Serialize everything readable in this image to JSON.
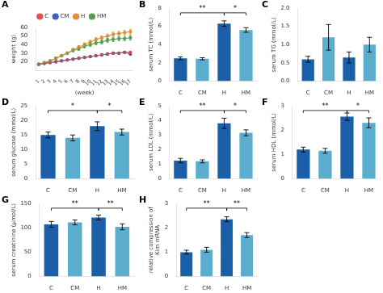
{
  "chart_data": [
    {
      "type": "line",
      "title": "A",
      "x": [
        1,
        2,
        3,
        4,
        5,
        6,
        7,
        8,
        9,
        10,
        11,
        12,
        13,
        14,
        15,
        16,
        17
      ],
      "series": [
        {
          "name": "C",
          "color": "#e05050",
          "values": [
            17,
            18,
            19,
            20,
            21,
            22,
            23,
            24,
            25,
            26,
            27,
            28,
            29,
            30,
            30,
            31,
            31
          ],
          "errors": [
            0.5,
            0.5,
            0.6,
            0.6,
            0.7,
            0.7,
            0.8,
            0.8,
            0.9,
            0.9,
            1.0,
            1.0,
            1.1,
            1.1,
            1.2,
            1.2,
            1.3
          ]
        },
        {
          "name": "CM",
          "color": "#4060c0",
          "values": [
            17,
            18,
            19,
            20,
            21,
            22,
            23,
            24,
            25,
            26,
            27,
            28,
            29,
            30,
            30,
            31,
            29
          ],
          "errors": [
            0.5,
            0.5,
            0.6,
            0.6,
            0.7,
            0.7,
            0.8,
            0.8,
            0.9,
            0.9,
            1.0,
            1.0,
            1.1,
            1.1,
            1.2,
            1.2,
            1.3
          ]
        },
        {
          "name": "H",
          "color": "#e09030",
          "values": [
            17,
            19,
            21,
            24,
            27,
            30,
            34,
            37,
            40,
            43,
            46,
            48,
            50,
            52,
            53,
            54,
            55
          ],
          "errors": [
            0.5,
            0.6,
            0.8,
            1.0,
            1.2,
            1.4,
            1.6,
            1.8,
            2.0,
            2.1,
            2.2,
            2.3,
            2.4,
            2.5,
            2.5,
            2.6,
            2.7
          ]
        },
        {
          "name": "HM",
          "color": "#50a050",
          "values": [
            17,
            19,
            21,
            24,
            27,
            30,
            33,
            35,
            38,
            40,
            42,
            43,
            45,
            46,
            47,
            47,
            48
          ],
          "errors": [
            0.5,
            0.6,
            0.8,
            1.0,
            1.2,
            1.4,
            1.6,
            1.8,
            2.0,
            2.1,
            2.2,
            2.3,
            2.4,
            2.5,
            2.5,
            2.6,
            2.7
          ]
        }
      ],
      "xlabel": "(week)",
      "ylabel": "weight (g)",
      "xlim": [
        0.5,
        17.5
      ],
      "xticks": [
        1,
        2,
        3,
        4,
        5,
        6,
        7,
        8,
        9,
        10,
        11,
        12,
        13,
        14,
        15,
        16,
        17
      ],
      "ylim": [
        10,
        60
      ],
      "yticks": [
        20,
        30,
        40,
        50,
        60
      ],
      "grid": false,
      "legend": "top",
      "marker": "circle"
    },
    {
      "type": "bar",
      "title": "B",
      "categories": [
        "C",
        "CM",
        "H",
        "HM"
      ],
      "values": [
        2.5,
        2.45,
        6.3,
        5.6
      ],
      "errors": [
        0.15,
        0.12,
        0.3,
        0.25
      ],
      "colors": [
        "#1a5fa8",
        "#5badce",
        "#1a5fa8",
        "#5badce"
      ],
      "ylabel": "serum TC (mmol/L)",
      "ylim": [
        0,
        8
      ],
      "yticks": [
        0,
        2,
        4,
        6,
        8
      ],
      "grid": false,
      "annotations": [
        {
          "text": "**",
          "categories": [
            "C",
            "H"
          ]
        },
        {
          "text": "*",
          "categories": [
            "H",
            "HM"
          ]
        }
      ]
    },
    {
      "type": "bar",
      "title": "C",
      "categories": [
        "C",
        "CM",
        "H",
        "HM"
      ],
      "values": [
        0.6,
        1.2,
        0.65,
        1.0
      ],
      "errors": [
        0.08,
        0.35,
        0.15,
        0.2
      ],
      "colors": [
        "#1a5fa8",
        "#5badce",
        "#1a5fa8",
        "#5badce"
      ],
      "ylabel": "serum TG (mmol/L)",
      "ylim": [
        0,
        2.0
      ],
      "yticks": [
        {
          "value": 0,
          "label": "0.0"
        },
        0.5,
        {
          "value": 1,
          "label": "1.0"
        },
        1.5,
        {
          "value": 2,
          "label": "2.0"
        }
      ],
      "grid": false,
      "annotations": []
    },
    {
      "type": "bar",
      "title": "D",
      "categories": [
        "C",
        "CM",
        "H",
        "HM"
      ],
      "values": [
        15.0,
        14.0,
        18.0,
        16.0
      ],
      "errors": [
        1.0,
        1.0,
        1.5,
        1.0
      ],
      "colors": [
        "#1a5fa8",
        "#5badce",
        "#1a5fa8",
        "#5badce"
      ],
      "ylabel": "serum glucose (mmol/L)",
      "ylim": [
        0,
        25
      ],
      "yticks": [
        0,
        5,
        10,
        15,
        20,
        25
      ],
      "grid": false,
      "annotations": [
        {
          "text": "*",
          "categories": [
            "C",
            "H"
          ]
        },
        {
          "text": "*",
          "categories": [
            "H",
            "HM"
          ]
        }
      ]
    },
    {
      "type": "bar",
      "title": "E",
      "categories": [
        "C",
        "CM",
        "H",
        "HM"
      ],
      "values": [
        1.25,
        1.2,
        3.8,
        3.15
      ],
      "errors": [
        0.15,
        0.1,
        0.35,
        0.2
      ],
      "colors": [
        "#1a5fa8",
        "#5badce",
        "#1a5fa8",
        "#5badce"
      ],
      "ylabel": "serum LDL (mmol/L)",
      "ylim": [
        0,
        5
      ],
      "yticks": [
        0,
        1,
        2,
        3,
        4,
        5
      ],
      "grid": false,
      "annotations": [
        {
          "text": "**",
          "categories": [
            "C",
            "H"
          ]
        },
        {
          "text": "*",
          "categories": [
            "H",
            "HM"
          ]
        }
      ]
    },
    {
      "type": "bar",
      "title": "F",
      "categories": [
        "C",
        "CM",
        "H",
        "HM"
      ],
      "values": [
        1.2,
        1.15,
        2.55,
        2.3
      ],
      "errors": [
        0.1,
        0.1,
        0.15,
        0.2
      ],
      "colors": [
        "#1a5fa8",
        "#5badce",
        "#1a5fa8",
        "#5badce"
      ],
      "ylabel": "serum HDL (mmol/L)",
      "ylim": [
        0,
        3
      ],
      "yticks": [
        0,
        1,
        2,
        3
      ],
      "grid": false,
      "annotations": [
        {
          "text": "**",
          "categories": [
            "C",
            "H"
          ]
        },
        {
          "text": "*",
          "categories": [
            "H",
            "HM"
          ]
        }
      ]
    },
    {
      "type": "bar",
      "title": "G",
      "categories": [
        "C",
        "CM",
        "H",
        "HM"
      ],
      "values": [
        107,
        111,
        121,
        102
      ],
      "errors": [
        6,
        5,
        5,
        6
      ],
      "colors": [
        "#1a5fa8",
        "#5badce",
        "#1a5fa8",
        "#5badce"
      ],
      "ylabel": "serum creatinine (μmol/L)",
      "ylim": [
        0,
        150
      ],
      "yticks": [
        0,
        50,
        100,
        150
      ],
      "grid": false,
      "annotations": [
        {
          "text": "**",
          "categories": [
            "C",
            "H"
          ]
        },
        {
          "text": "**",
          "categories": [
            "H",
            "HM"
          ]
        }
      ]
    },
    {
      "type": "bar",
      "title": "H",
      "categories": [
        "C",
        "CM",
        "H",
        "HM"
      ],
      "values": [
        1.0,
        1.1,
        2.35,
        1.7
      ],
      "errors": [
        0.08,
        0.1,
        0.1,
        0.1
      ],
      "colors": [
        "#1a5fa8",
        "#5badce",
        "#1a5fa8",
        "#5badce"
      ],
      "ylabel": "relative compression of\nKim mRNA",
      "ylim": [
        0,
        3
      ],
      "yticks": [
        0,
        1,
        2,
        3
      ],
      "grid": false,
      "annotations": [
        {
          "text": "**",
          "categories": [
            "C",
            "H"
          ]
        },
        {
          "text": "**",
          "categories": [
            "H",
            "HM"
          ]
        }
      ]
    }
  ]
}
